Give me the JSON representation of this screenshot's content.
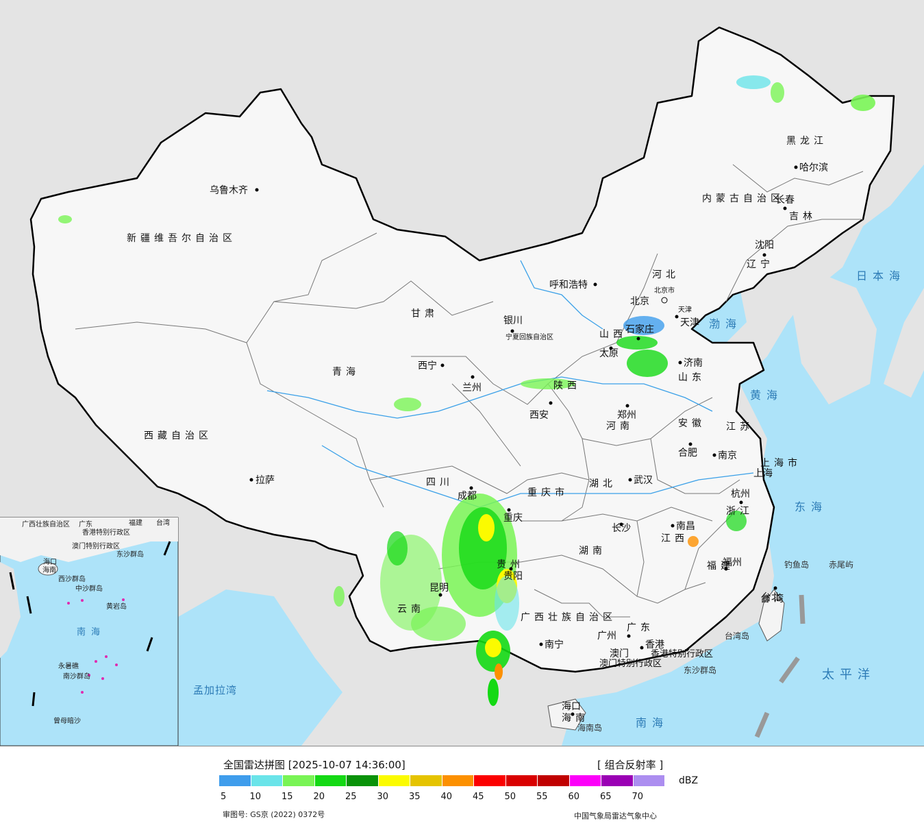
{
  "map": {
    "provinces": [
      "新疆维吾尔自治区",
      "西藏自治区",
      "青海",
      "甘肃",
      "内蒙古自治区",
      "黑龙江",
      "吉林",
      "辽宁",
      "河北",
      "山西",
      "山东",
      "河南",
      "陕西",
      "四川",
      "重庆市",
      "湖北",
      "安徽",
      "江苏",
      "上海市",
      "浙江",
      "江西",
      "湖南",
      "贵州",
      "云南",
      "广西壮族自治区",
      "广东",
      "福建",
      "台湾",
      "海南",
      "香港特别行政区",
      "澳门特别行政区",
      "宁夏回族自治区",
      "北京市",
      "天津"
    ],
    "cities": [
      "乌鲁木齐",
      "拉萨",
      "西宁",
      "兰州",
      "银川",
      "呼和浩特",
      "北京",
      "天津",
      "石家庄",
      "太原",
      "济南",
      "郑州",
      "西安",
      "成都",
      "重庆",
      "武汉",
      "合肥",
      "南京",
      "上海",
      "杭州",
      "长沙",
      "南昌",
      "福州",
      "台北",
      "贵阳",
      "昆明",
      "南宁",
      "广州",
      "香港",
      "澳门",
      "海口",
      "哈尔滨",
      "长春",
      "沈阳"
    ],
    "seas": [
      "日本海",
      "渤海",
      "黄海",
      "东海",
      "太平洋",
      "南海",
      "孟加拉湾"
    ],
    "islands": [
      "钓鱼岛",
      "赤尾屿",
      "台湾岛",
      "东沙群岛",
      "海南岛"
    ],
    "inset": {
      "labels": [
        "广西壮族自治区",
        "广东",
        "福建",
        "台湾",
        "香港特别行政区",
        "澳门特别行政区",
        "海口",
        "海南",
        "东沙群岛",
        "西沙群岛",
        "中沙群岛",
        "黄岩岛",
        "南沙群岛",
        "曾母暗沙",
        "南海",
        "永暑礁"
      ]
    }
  },
  "legend": {
    "title": "全国雷达拼图 [2025-10-07 14:36:00]",
    "product": "[ 组合反射率 ]",
    "unit": "dBZ",
    "colors": [
      "#3f9dec",
      "#6ae4e9",
      "#79f455",
      "#14d914",
      "#099209",
      "#fbfb00",
      "#e5c300",
      "#fc9000",
      "#fb0000",
      "#d90000",
      "#c00000",
      "#fc00f9",
      "#9a00b4",
      "#ac8ef0"
    ],
    "ticks": [
      "5",
      "10",
      "15",
      "20",
      "25",
      "30",
      "35",
      "40",
      "45",
      "50",
      "55",
      "60",
      "65",
      "70"
    ],
    "approval": "审图号: GS京 (2022) 0372号",
    "source": "中国气象局雷达气象中心"
  }
}
